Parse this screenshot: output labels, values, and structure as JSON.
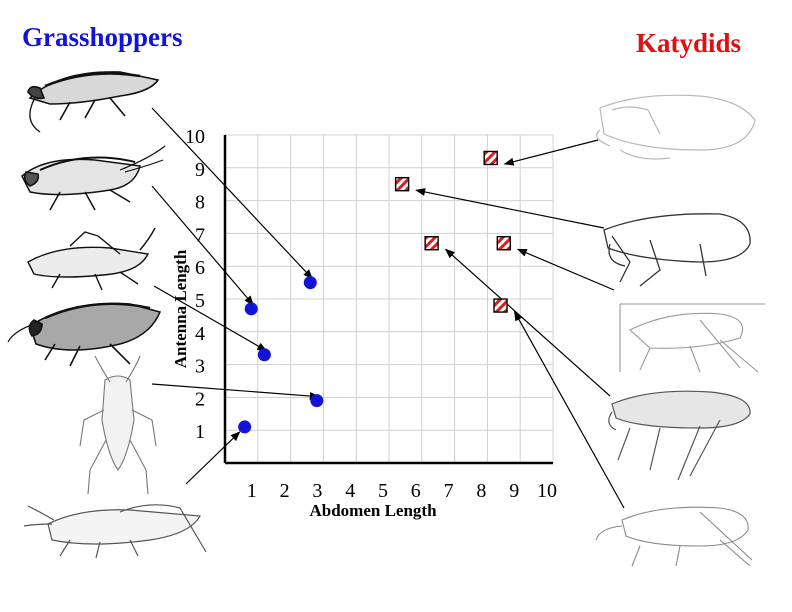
{
  "headings": {
    "left": "Grasshoppers",
    "right": "Katydids"
  },
  "colors": {
    "grasshopper": "#1212d8",
    "katydid": "#e01010",
    "grid": "#d0d0d0",
    "katydid_stripe": "#d82020"
  },
  "chart_data": {
    "type": "scatter",
    "xlabel": "Abdomen Length",
    "ylabel": "Antenna Length",
    "xlim": [
      0,
      10
    ],
    "ylim": [
      0,
      10
    ],
    "xticks": [
      1,
      2,
      3,
      4,
      5,
      6,
      7,
      8,
      9,
      10
    ],
    "yticks": [
      1,
      2,
      3,
      4,
      5,
      6,
      7,
      8,
      9,
      10
    ],
    "grid": true,
    "series": [
      {
        "name": "Grasshoppers",
        "marker": "circle",
        "points": [
          [
            0.6,
            1.1
          ],
          [
            2.8,
            1.9
          ],
          [
            1.2,
            3.3
          ],
          [
            0.8,
            4.7
          ],
          [
            2.6,
            5.5
          ]
        ]
      },
      {
        "name": "Katydids",
        "marker": "striped-square",
        "points": [
          [
            5.4,
            8.5
          ],
          [
            8.1,
            9.3
          ],
          [
            6.3,
            6.7
          ],
          [
            8.5,
            6.7
          ],
          [
            8.4,
            4.8
          ]
        ]
      }
    ]
  },
  "illustrations": {
    "grasshoppers": [
      "grasshopper-image-1",
      "grasshopper-image-2",
      "grasshopper-image-3",
      "grasshopper-image-4",
      "grasshopper-image-5",
      "grasshopper-image-6"
    ],
    "katydids": [
      "katydid-image-1",
      "katydid-image-2",
      "katydid-image-3",
      "katydid-image-4",
      "katydid-image-5",
      "katydid-image-6"
    ]
  }
}
